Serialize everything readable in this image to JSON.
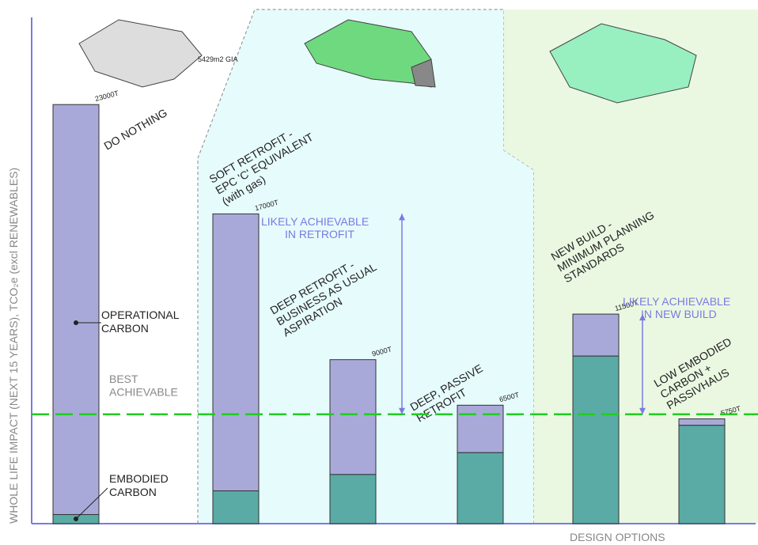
{
  "chart_data": {
    "type": "stacked-bar",
    "y_label": "WHOLE LIFE IMPACT (NEXT 15 YEARS), TCO₂e (excl RENEWABLES)",
    "x_label": "DESIGN OPTIONS",
    "categories": [
      "DO NOTHING",
      "SOFT RETROFIT -\nEPC 'C' EQUIVALENT\n(with gas)",
      "DEEP RETROFIT -\nBUSINESS AS USUAL\nASPIRATION",
      "DEEP, PASSIVE\nRETROFIT",
      "NEW BUILD -\nMINIMUM PLANNING\nSTANDARDS",
      "LOW EMBODIED\nCARBON +\nPASSIVHAUS"
    ],
    "series": [
      {
        "name": "EMBODIED CARBON",
        "color": "#5aaba5",
        "values": [
          500,
          1800,
          2700,
          3900,
          9200,
          5400
        ]
      },
      {
        "name": "OPERATIONAL CARBON",
        "color": "#a9a9d9",
        "values": [
          22500,
          15200,
          6300,
          2600,
          2300,
          350
        ]
      }
    ],
    "totals": {
      "values": [
        23000,
        17000,
        9000,
        6500,
        11500,
        5750
      ],
      "value_labels": [
        "23000T",
        "17000T",
        "9000T",
        "6500T",
        "11500T",
        "5750T"
      ]
    },
    "reference_line": {
      "value": 6000,
      "label": "BEST ACHIEVABLE",
      "color": "#22cc22"
    },
    "annotations": {
      "retrofit": "LIKELY ACHIEVABLE\nIN RETROFIT",
      "new_build": "LIKELY ACHIEVABLE\nIN NEW BUILD",
      "area": "5429m2 GIA"
    },
    "ylim": [
      0,
      28000
    ],
    "yticks": []
  }
}
